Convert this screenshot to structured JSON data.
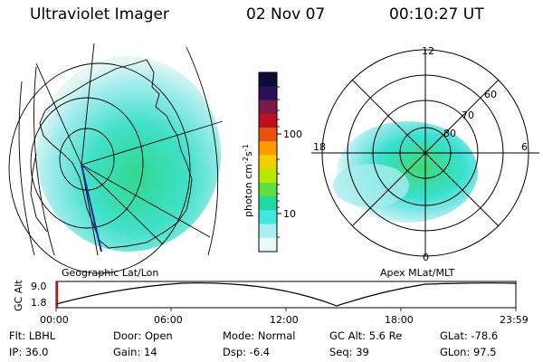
{
  "header": {
    "instrument": "Ultraviolet Imager",
    "date": "02 Nov 07",
    "time": "00:10:27 UT"
  },
  "geo_map": {
    "caption": "Geographic Lat/Lon"
  },
  "colorbar": {
    "unit_label_prefix": "photon cm",
    "unit_label_exp1": "-2",
    "unit_label_mid": "s",
    "unit_label_exp2": "-1",
    "tick_100": "100",
    "tick_10": "10",
    "colors": [
      "#0d0d3a",
      "#2a0f5a",
      "#7a1a4a",
      "#c01020",
      "#e85010",
      "#ff9a00",
      "#f0d000",
      "#b8e800",
      "#60e040",
      "#20d8a0",
      "#40e8e0",
      "#a8f0f0",
      "#e8f8f8"
    ]
  },
  "polar_plot": {
    "caption": "Apex MLat/MLT",
    "mlt_labels": {
      "top": "12",
      "left": "18",
      "right": "6",
      "bottom": "0"
    },
    "lat_labels": [
      "60",
      "70",
      "80"
    ]
  },
  "timeline": {
    "y_axis_label": "GC Alt",
    "y_ticks": [
      "9.0",
      "1.8"
    ],
    "x_ticks": [
      "00:00",
      "06:00",
      "12:00",
      "18:00",
      "23:59"
    ]
  },
  "info": {
    "flt": "Flt: LBHL",
    "ip": "IP: 36.0",
    "door": "Door: Open",
    "gain": "Gain: 14",
    "mode": "Mode: Normal",
    "dsp": "Dsp:   -6.4",
    "gc_alt": "GC Alt: 5.6 Re",
    "seq": "Seq: 39",
    "glat": "GLat:  -78.6",
    "glon": "GLon:  97.5"
  }
}
